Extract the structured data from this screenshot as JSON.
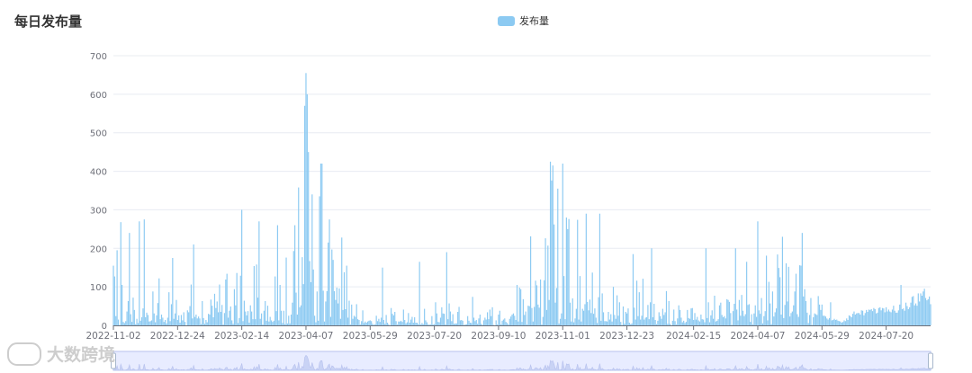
{
  "page": {
    "title": "每日发布量"
  },
  "legend": {
    "label": "发布量"
  },
  "watermark": {
    "text": "大数跨境"
  },
  "colors": {
    "bar": "#8ccaf2",
    "grid": "#e8ecf2",
    "axis": "#6e7079",
    "zoom_fill": "#e8ecff",
    "zoom_line": "#b7c1ee"
  },
  "chart_data": {
    "type": "bar",
    "title": "每日发布量",
    "series": [
      {
        "name": "发布量"
      }
    ],
    "x_ticks": [
      "2022-11-02",
      "2022-12-24",
      "2023-02-14",
      "2023-04-07",
      "2023-05-29",
      "2023-07-20",
      "2023-09-10",
      "2023-11-01",
      "2023-12-23",
      "2024-02-15",
      "2024-04-07",
      "2024-05-29",
      "2024-07-20"
    ],
    "x_range": [
      "2022-11-02",
      "2024-08-25"
    ],
    "ylim": [
      0,
      700
    ],
    "yticks": [
      0,
      100,
      200,
      300,
      400,
      500,
      600,
      700
    ],
    "grid": true,
    "legend_position": "top-center",
    "data_zoom": true,
    "key_points": [
      {
        "date": "2022-11-02",
        "value": 155
      },
      {
        "date": "2022-11-05",
        "value": 195
      },
      {
        "date": "2022-11-08",
        "value": 268
      },
      {
        "date": "2022-11-15",
        "value": 240
      },
      {
        "date": "2022-11-23",
        "value": 270
      },
      {
        "date": "2022-11-27",
        "value": 275
      },
      {
        "date": "2022-12-20",
        "value": 175
      },
      {
        "date": "2023-01-06",
        "value": 210
      },
      {
        "date": "2023-02-14",
        "value": 300
      },
      {
        "date": "2023-02-28",
        "value": 270
      },
      {
        "date": "2023-03-15",
        "value": 260
      },
      {
        "date": "2023-03-29",
        "value": 260
      },
      {
        "date": "2023-04-06",
        "value": 570
      },
      {
        "date": "2023-04-07",
        "value": 655
      },
      {
        "date": "2023-04-08",
        "value": 600
      },
      {
        "date": "2023-04-09",
        "value": 450
      },
      {
        "date": "2023-04-12",
        "value": 340
      },
      {
        "date": "2023-04-18",
        "value": 335
      },
      {
        "date": "2023-04-26",
        "value": 275
      },
      {
        "date": "2023-05-10",
        "value": 155
      },
      {
        "date": "2023-06-08",
        "value": 150
      },
      {
        "date": "2023-07-08",
        "value": 165
      },
      {
        "date": "2023-07-30",
        "value": 190
      },
      {
        "date": "2023-09-25",
        "value": 105
      },
      {
        "date": "2023-10-22",
        "value": 425
      },
      {
        "date": "2023-10-24",
        "value": 415
      },
      {
        "date": "2023-10-28",
        "value": 355
      },
      {
        "date": "2023-11-05",
        "value": 250
      },
      {
        "date": "2023-11-20",
        "value": 290
      },
      {
        "date": "2023-12-01",
        "value": 290
      },
      {
        "date": "2023-12-28",
        "value": 185
      },
      {
        "date": "2024-01-12",
        "value": 200
      },
      {
        "date": "2024-02-25",
        "value": 200
      },
      {
        "date": "2024-03-20",
        "value": 200
      },
      {
        "date": "2024-04-07",
        "value": 270
      },
      {
        "date": "2024-04-27",
        "value": 230
      },
      {
        "date": "2024-05-12",
        "value": 155
      },
      {
        "date": "2024-06-05",
        "value": 60
      },
      {
        "date": "2024-08-01",
        "value": 105
      },
      {
        "date": "2024-08-25",
        "value": 55
      }
    ]
  }
}
